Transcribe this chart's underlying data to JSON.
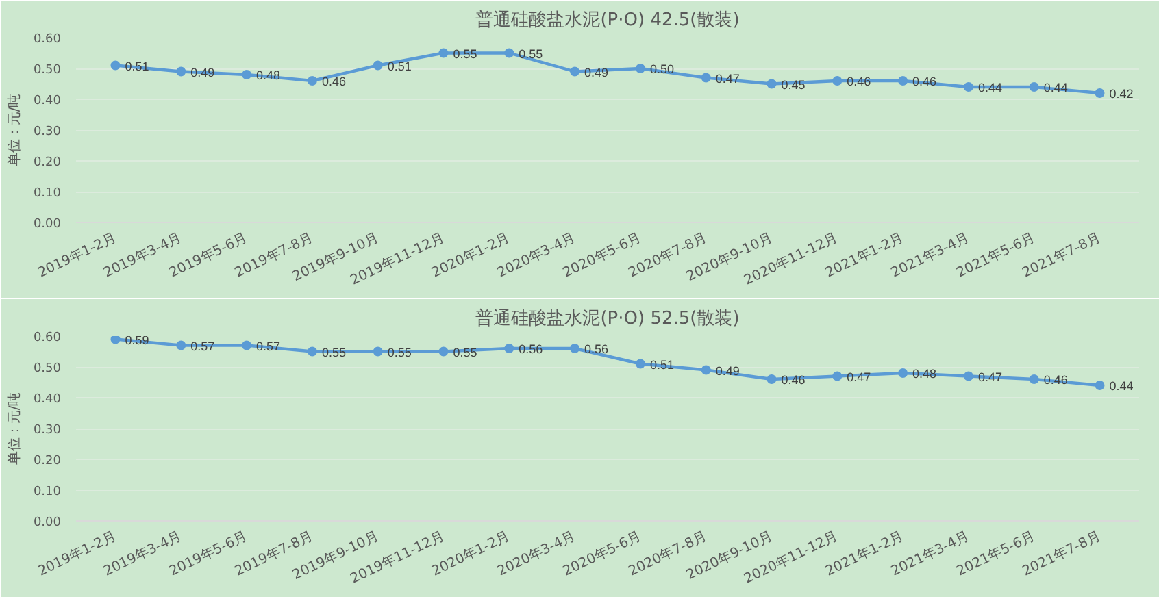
{
  "chart_data": [
    {
      "type": "line",
      "title": "普通硅酸盐水泥(P·O) 42.5(散装)",
      "ylabel": "单位：元/吨",
      "categories": [
        "2019年1-2月",
        "2019年3-4月",
        "2019年5-6月",
        "2019年7-8月",
        "2019年9-10月",
        "2019年11-12月",
        "2020年1-2月",
        "2020年3-4月",
        "2020年5-6月",
        "2020年7-8月",
        "2020年9-10月",
        "2020年11-12月",
        "2021年1-2月",
        "2021年3-4月",
        "2021年5-6月",
        "2021年7-8月"
      ],
      "series": [
        {
          "color": "#5b9bd5",
          "values": [
            0.51,
            0.49,
            0.48,
            0.46,
            0.51,
            0.55,
            0.55,
            0.49,
            0.5,
            0.47,
            0.45,
            0.46,
            0.46,
            0.44,
            0.44,
            0.42
          ],
          "value_labels": [
            "0.51",
            "0.49",
            "0.48",
            "0.46",
            "0.51",
            "0.55",
            "0.55",
            "0.49",
            "0.50",
            "0.47",
            "0.45",
            "0.46",
            "0.46",
            "0.44",
            "0.44",
            "0.42"
          ]
        }
      ],
      "ylim": [
        0,
        0.6
      ],
      "yticks": [
        {
          "value": 0,
          "label": "0.00"
        },
        {
          "value": 0.1,
          "label": "0.10"
        },
        {
          "value": 0.2,
          "label": "0.20"
        },
        {
          "value": 0.3,
          "label": "0.30"
        },
        {
          "value": 0.4,
          "label": "0.40"
        },
        {
          "value": 0.5,
          "label": "0.50"
        },
        {
          "value": 0.6,
          "label": "0.60"
        }
      ],
      "marker": "circle",
      "line_style": "solid",
      "grid": "y"
    },
    {
      "type": "line",
      "title": "普通硅酸盐水泥(P·O) 52.5(散装)",
      "ylabel": "单位：元/吨",
      "categories": [
        "2019年1-2月",
        "2019年3-4月",
        "2019年5-6月",
        "2019年7-8月",
        "2019年9-10月",
        "2019年11-12月",
        "2020年1-2月",
        "2020年3-4月",
        "2020年5-6月",
        "2020年7-8月",
        "2020年9-10月",
        "2020年11-12月",
        "2021年1-2月",
        "2021年3-4月",
        "2021年5-6月",
        "2021年7-8月"
      ],
      "series": [
        {
          "color": "#5b9bd5",
          "values": [
            0.59,
            0.57,
            0.57,
            0.55,
            0.55,
            0.55,
            0.56,
            0.56,
            0.51,
            0.49,
            0.46,
            0.47,
            0.48,
            0.47,
            0.46,
            0.44
          ],
          "value_labels": [
            "0.59",
            "0.57",
            "0.57",
            "0.55",
            "0.55",
            "0.55",
            "0.56",
            "0.56",
            "0.51",
            "0.49",
            "0.46",
            "0.47",
            "0.48",
            "0.47",
            "0.46",
            "0.44"
          ]
        }
      ],
      "ylim": [
        0,
        0.6
      ],
      "yticks": [
        {
          "value": 0,
          "label": "0.00"
        },
        {
          "value": 0.1,
          "label": "0.10"
        },
        {
          "value": 0.2,
          "label": "0.20"
        },
        {
          "value": 0.3,
          "label": "0.30"
        },
        {
          "value": 0.4,
          "label": "0.40"
        },
        {
          "value": 0.5,
          "label": "0.50"
        },
        {
          "value": 0.6,
          "label": "0.60"
        }
      ],
      "marker": "circle",
      "line_style": "solid",
      "grid": "y"
    }
  ]
}
